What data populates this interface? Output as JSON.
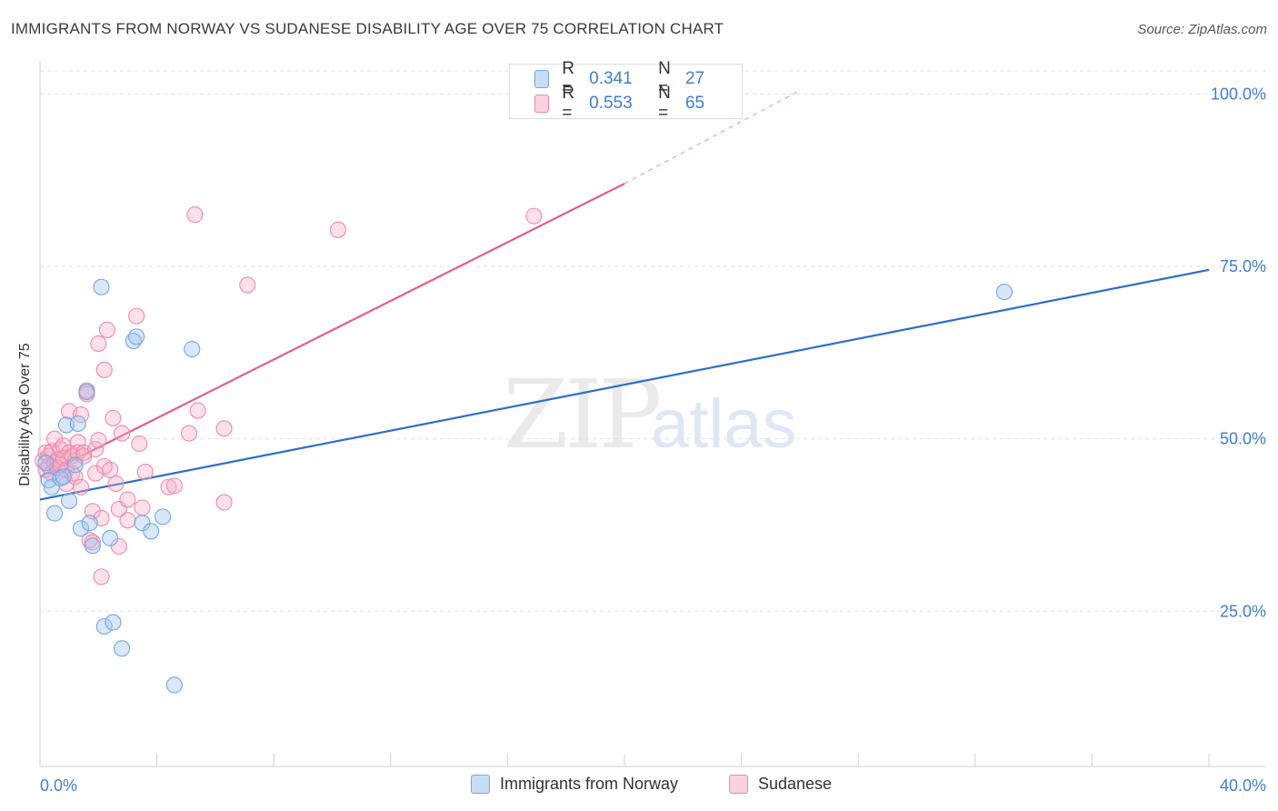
{
  "title": "IMMIGRANTS FROM NORWAY VS SUDANESE DISABILITY AGE OVER 75 CORRELATION CHART",
  "source": "Source: ZipAtlas.com",
  "watermark": {
    "zip": "ZIP",
    "atlas": "atlas"
  },
  "legend": {
    "r_label": "R =",
    "n_label": "N =",
    "rows": [
      {
        "r": "0.341",
        "n": "27",
        "color": "#6fa8e8"
      },
      {
        "r": "0.553",
        "n": "65",
        "color": "#f08aaa"
      }
    ]
  },
  "chart_data": {
    "type": "scatter",
    "title": "IMMIGRANTS FROM NORWAY VS SUDANESE DISABILITY AGE OVER 75 CORRELATION CHART",
    "xlabel": "",
    "ylabel": "Disability Age Over 75",
    "xlim": [
      0,
      40
    ],
    "ylim": [
      2.5,
      104
    ],
    "x_tick_labels": [
      "0.0%",
      "40.0%"
    ],
    "y_ticks": [
      25,
      50,
      75,
      100
    ],
    "y_tick_labels": [
      "25.0%",
      "50.0%",
      "75.0%",
      "100.0%"
    ],
    "grid": true,
    "series": [
      {
        "name": "Immigrants from Norway",
        "color": "#6fa8e8",
        "line_color": "#2b6fcc",
        "r": 0.341,
        "n": 27,
        "trend": {
          "x0": 0,
          "y0": 41.2,
          "x1": 40,
          "y1": 74.5
        },
        "points": [
          [
            0.2,
            46.5
          ],
          [
            0.3,
            44.0
          ],
          [
            0.4,
            43.0
          ],
          [
            0.5,
            39.2
          ],
          [
            0.7,
            44.3
          ],
          [
            0.8,
            44.5
          ],
          [
            0.9,
            52.0
          ],
          [
            1.0,
            41.0
          ],
          [
            1.2,
            46.2
          ],
          [
            1.3,
            52.2
          ],
          [
            1.4,
            37.0
          ],
          [
            1.6,
            56.8
          ],
          [
            1.7,
            37.8
          ],
          [
            1.8,
            34.5
          ],
          [
            2.1,
            72.0
          ],
          [
            2.2,
            22.8
          ],
          [
            2.4,
            35.6
          ],
          [
            2.5,
            23.4
          ],
          [
            2.8,
            19.6
          ],
          [
            3.2,
            64.2
          ],
          [
            3.3,
            64.8
          ],
          [
            3.5,
            37.8
          ],
          [
            3.8,
            36.6
          ],
          [
            4.2,
            38.7
          ],
          [
            4.6,
            14.3
          ],
          [
            5.2,
            63.0
          ],
          [
            33.0,
            71.3
          ]
        ]
      },
      {
        "name": "Sudanese",
        "color": "#f08aaa",
        "line_color": "#e0608c",
        "r": 0.553,
        "n": 65,
        "trend": {
          "x0": 0,
          "y0": 44.5,
          "x1": 20,
          "y1": 87.0
        },
        "trend_ext": {
          "x0": 20,
          "y0": 87.0,
          "x1": 26.0,
          "y1": 100.5
        },
        "points": [
          [
            0.1,
            46.8
          ],
          [
            0.2,
            48.0
          ],
          [
            0.2,
            45.5
          ],
          [
            0.3,
            47.5
          ],
          [
            0.3,
            46.0
          ],
          [
            0.4,
            48.2
          ],
          [
            0.4,
            45.0
          ],
          [
            0.5,
            50.0
          ],
          [
            0.5,
            46.5
          ],
          [
            0.6,
            47.0
          ],
          [
            0.6,
            45.8
          ],
          [
            0.7,
            48.5
          ],
          [
            0.7,
            46.2
          ],
          [
            0.8,
            49.0
          ],
          [
            0.8,
            47.2
          ],
          [
            0.9,
            45.5
          ],
          [
            0.9,
            43.5
          ],
          [
            1.0,
            54.0
          ],
          [
            1.0,
            48.0
          ],
          [
            1.1,
            47.5
          ],
          [
            1.1,
            45.0
          ],
          [
            1.2,
            46.8
          ],
          [
            1.2,
            44.5
          ],
          [
            1.3,
            49.5
          ],
          [
            1.3,
            48.0
          ],
          [
            1.4,
            53.5
          ],
          [
            1.4,
            43.0
          ],
          [
            1.5,
            48.0
          ],
          [
            1.5,
            47.5
          ],
          [
            1.6,
            57.0
          ],
          [
            1.6,
            56.5
          ],
          [
            1.7,
            35.3
          ],
          [
            1.8,
            35.0
          ],
          [
            1.8,
            39.5
          ],
          [
            1.9,
            45.0
          ],
          [
            1.9,
            48.5
          ],
          [
            2.0,
            49.8
          ],
          [
            2.0,
            63.8
          ],
          [
            2.1,
            30.0
          ],
          [
            2.1,
            38.5
          ],
          [
            2.2,
            60.0
          ],
          [
            2.2,
            46.0
          ],
          [
            2.3,
            65.8
          ],
          [
            2.4,
            45.5
          ],
          [
            2.5,
            53.0
          ],
          [
            2.6,
            43.5
          ],
          [
            2.7,
            34.4
          ],
          [
            2.7,
            39.8
          ],
          [
            2.8,
            50.8
          ],
          [
            3.0,
            38.2
          ],
          [
            3.0,
            41.2
          ],
          [
            3.3,
            67.8
          ],
          [
            3.4,
            49.3
          ],
          [
            3.5,
            40.0
          ],
          [
            3.6,
            45.2
          ],
          [
            4.4,
            43.0
          ],
          [
            4.6,
            43.2
          ],
          [
            5.1,
            50.8
          ],
          [
            5.3,
            82.5
          ],
          [
            5.4,
            54.1
          ],
          [
            6.3,
            40.8
          ],
          [
            6.3,
            51.5
          ],
          [
            7.1,
            72.3
          ],
          [
            10.2,
            80.3
          ],
          [
            16.9,
            82.3
          ]
        ]
      }
    ]
  }
}
